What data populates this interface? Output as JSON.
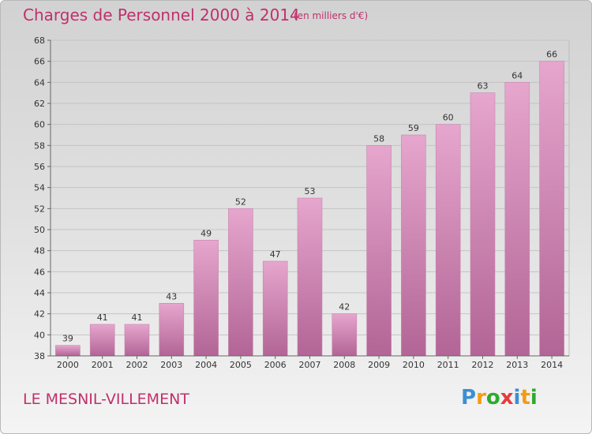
{
  "title": "Charges de Personnel 2000 à 2014",
  "subtitle": "(en milliers d'€)",
  "city": "LE MESNIL-VILLEMENT",
  "logo": {
    "letters": [
      "P",
      "r",
      "o",
      "x",
      "i",
      "t",
      "i"
    ],
    "colors": [
      "#3d8fd1",
      "#f39c12",
      "#2eaa2e",
      "#e43c3c",
      "#3d8fd1",
      "#f39c12",
      "#2eaa2e"
    ]
  },
  "colors": {
    "bar_top": "#e6a6cd",
    "bar_bottom": "#b26596",
    "text": "#c0306a"
  },
  "chart_data": {
    "type": "bar",
    "categories": [
      "2000",
      "2001",
      "2002",
      "2003",
      "2004",
      "2005",
      "2006",
      "2007",
      "2008",
      "2009",
      "2010",
      "2011",
      "2012",
      "2013",
      "2014"
    ],
    "values": [
      39,
      41,
      41,
      43,
      49,
      52,
      47,
      53,
      42,
      58,
      59,
      60,
      63,
      64,
      66
    ],
    "ylim": [
      38,
      68
    ],
    "yticks": [
      38,
      40,
      42,
      44,
      46,
      48,
      50,
      52,
      54,
      56,
      58,
      60,
      62,
      64,
      66,
      68
    ],
    "grid": true
  }
}
